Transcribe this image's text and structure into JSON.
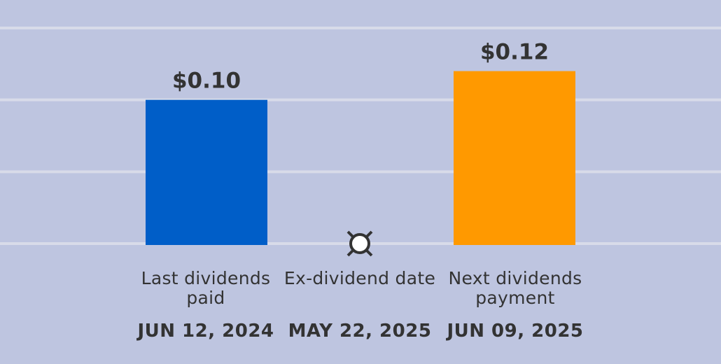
{
  "chart_data": {
    "type": "bar",
    "categories": [
      "Last dividends paid",
      "Ex-dividend date",
      "Next dividends payment"
    ],
    "bars": [
      {
        "category_index": 0,
        "value": 0.1,
        "label": "$0.10",
        "color": "#005ec8"
      },
      {
        "category_index": 2,
        "value": 0.12,
        "label": "$0.12",
        "color": "#ff9900"
      }
    ],
    "marker": {
      "category_index": 1,
      "icon": "ex-dividend-marker-icon"
    },
    "dates": [
      "JUN 12, 2024",
      "MAY 22, 2025",
      "JUN 09, 2025"
    ],
    "ylim": [
      0,
      0.15
    ],
    "gridlines": [
      0,
      0.05,
      0.1,
      0.15
    ],
    "grid": true,
    "colors": {
      "background": "#bec5e0",
      "grid": "#d8dbe9",
      "text": "#333333"
    }
  }
}
